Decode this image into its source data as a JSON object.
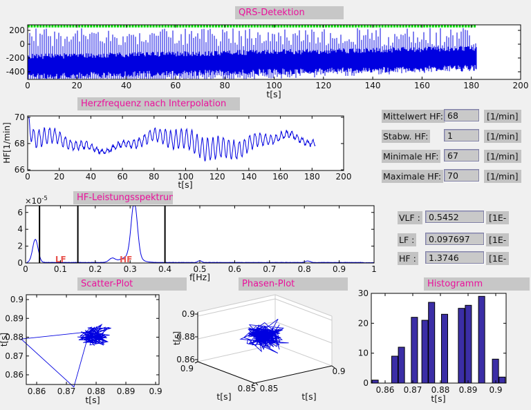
{
  "colors": {
    "page_bg": "#f0f0f0",
    "title_bg": "#c7c7c7",
    "title_text": "#ea119b",
    "label_bg": "#c3c3c3",
    "field_bg": "#c9c9c9",
    "line_blue": "#0000e0",
    "marker_green": "#00dd00",
    "hist_fill": "#3b2ea6",
    "band_label_red": "#e8534e",
    "axis_black": "#000000",
    "grid_gray": "#cccccc"
  },
  "stats_fields": {
    "rows": [
      {
        "label": "Mittelwert HF:",
        "value": "68",
        "unit": "[1/min]"
      },
      {
        "label": "Stabw. HF:",
        "value": "1",
        "unit": "[1/min]"
      },
      {
        "label": "Minimale HF:",
        "value": "67",
        "unit": "[1/min]"
      },
      {
        "label": "Maximale HF:",
        "value": "70",
        "unit": "[1/min]"
      }
    ]
  },
  "power_fields": {
    "rows": [
      {
        "label": "VLF :",
        "value": "0.5452",
        "unit": "[1E-"
      },
      {
        "label": "LF :",
        "value": "0.097697",
        "unit": "[1E-"
      },
      {
        "label": "HF :",
        "value": "1.3746",
        "unit": "[1E-"
      }
    ]
  },
  "chart_data": [
    {
      "id": "qrs",
      "type": "line",
      "title": "QRS-Detektion",
      "xlabel": "t[s]",
      "xlim": [
        0,
        200
      ],
      "ylim": [
        -510,
        280
      ],
      "xticks": [
        [
          0,
          "0"
        ],
        [
          20,
          "20"
        ],
        [
          40,
          "40"
        ],
        [
          60,
          "60"
        ],
        [
          80,
          "80"
        ],
        [
          100,
          "100"
        ],
        [
          120,
          "120"
        ],
        [
          140,
          "140"
        ],
        [
          160,
          "160"
        ],
        [
          180,
          "180"
        ],
        [
          200,
          "200"
        ]
      ],
      "yticks": [
        [
          -400,
          "-400"
        ],
        [
          -200,
          "-200"
        ],
        [
          0,
          "0"
        ],
        [
          200,
          "200"
        ]
      ],
      "signal": {
        "kind": "ecg-with-noise",
        "t_end": 182,
        "band_center_start": -310,
        "band_center_end": -190,
        "band_halfwidth": 150,
        "spike_top_max": 235,
        "spike_bottom_min": -502,
        "qrs_marker_level": 260
      }
    },
    {
      "id": "hf",
      "type": "line",
      "title": "Herzfrequenz nach Interpolation",
      "xlabel": "t[s]",
      "ylabel": "HF[1/min]",
      "xlim": [
        0,
        200
      ],
      "ylim": [
        66,
        70
      ],
      "xticks": [
        [
          0,
          "0"
        ],
        [
          20,
          "20"
        ],
        [
          40,
          "40"
        ],
        [
          60,
          "60"
        ],
        [
          80,
          "80"
        ],
        [
          100,
          "100"
        ],
        [
          120,
          "120"
        ],
        [
          140,
          "140"
        ],
        [
          160,
          "160"
        ],
        [
          180,
          "180"
        ],
        [
          200,
          "200"
        ]
      ],
      "yticks": [
        [
          66,
          "66"
        ],
        [
          68,
          "68"
        ],
        [
          70,
          "70"
        ]
      ],
      "signal": {
        "mean": 68.05,
        "resp_freq_hz": 0.3,
        "resp_amp": 0.9,
        "slow_amp": 0.5,
        "start_peak": 70,
        "min": 66.5,
        "max": 70,
        "t_end": 182
      }
    },
    {
      "id": "spectrum",
      "type": "line",
      "title": "HF-Leistungsspektrum",
      "xlabel": "f[Hz]",
      "exponent_label": {
        "base": "×10",
        "exp": "-5"
      },
      "xlim": [
        0,
        1
      ],
      "ylim": [
        0,
        6.8
      ],
      "xticks": [
        [
          0,
          "0"
        ],
        [
          0.1,
          "0.1"
        ],
        [
          0.2,
          "0.2"
        ],
        [
          0.3,
          "0.3"
        ],
        [
          0.4,
          "0.4"
        ],
        [
          0.5,
          "0.5"
        ],
        [
          0.6,
          "0.6"
        ],
        [
          0.7,
          "0.7"
        ],
        [
          0.8,
          "0.8"
        ],
        [
          0.9,
          "0.9"
        ],
        [
          1,
          "1"
        ]
      ],
      "yticks": [
        [
          0,
          "0"
        ],
        [
          2,
          "2"
        ],
        [
          4,
          "4"
        ],
        [
          6,
          "6"
        ]
      ],
      "vlines": [
        0.04,
        0.15,
        0.4
      ],
      "band_labels": [
        {
          "text": "LF",
          "f": 0.085
        },
        {
          "text": "HF",
          "f": 0.27
        }
      ],
      "peaks": [
        {
          "f": 0.028,
          "h": 2.75,
          "w": 0.011
        },
        {
          "f": 0.248,
          "h": 0.45,
          "w": 0.012
        },
        {
          "f": 0.312,
          "h": 6.55,
          "w": 0.0125
        },
        {
          "f": 0.3,
          "h": 0.7,
          "w": 0.035
        },
        {
          "f": 0.5,
          "h": 0.22,
          "w": 0.007
        },
        {
          "f": 0.81,
          "h": 0.18,
          "w": 0.009
        }
      ],
      "baseline": 0.05
    },
    {
      "id": "scatter",
      "type": "scatter-line",
      "title": "Scatter-Plot",
      "xlabel": "t[s]",
      "ylabel": "t[s]",
      "xticks": [
        [
          0.86,
          "0.86"
        ],
        [
          0.87,
          "0.87"
        ],
        [
          0.88,
          "0.88"
        ],
        [
          0.89,
          "0.89"
        ],
        [
          0.9,
          "0.9"
        ]
      ],
      "yticks": [
        [
          0.86,
          "0.86"
        ],
        [
          0.87,
          "0.87"
        ],
        [
          0.88,
          "0.88"
        ],
        [
          0.89,
          "0.89"
        ],
        [
          0.9,
          "0.9"
        ]
      ],
      "cluster": {
        "center_x": 0.8795,
        "center_y": 0.8805,
        "spread": 0.0075,
        "n_points": 130
      },
      "outlier_points": [
        [
          0.8548,
          0.879
        ],
        [
          0.8725,
          0.8535
        ]
      ]
    },
    {
      "id": "phase",
      "type": "line3d",
      "title": "Phasen-Plot",
      "xlabel": "t[s]",
      "ylabel": "t[s]",
      "zlabel": "t[s]",
      "xticks": [
        "0.9",
        "0.85"
      ],
      "yticks": [
        "0.85",
        "0.9"
      ],
      "zticks": [
        "0.9",
        "0.88",
        "0.86"
      ],
      "cluster": {
        "n_points": 240,
        "u_spread": 0.28,
        "v_spread": 0.28,
        "w_spread": 0.3
      }
    },
    {
      "id": "hist",
      "type": "bar",
      "title": "Histogramm",
      "xlabel": "t[s]",
      "xticks": [
        [
          0.86,
          "0.86"
        ],
        [
          0.87,
          "0.87"
        ],
        [
          0.88,
          "0.88"
        ],
        [
          0.89,
          "0.89"
        ],
        [
          0.9,
          "0.9"
        ]
      ],
      "yticks": [
        [
          0,
          "0"
        ],
        [
          10,
          "10"
        ],
        [
          20,
          "20"
        ],
        [
          30,
          "30"
        ]
      ],
      "ylim": [
        0,
        30
      ],
      "bar_width": 0.00225,
      "centers": [
        0.8564,
        0.8635,
        0.8659,
        0.8706,
        0.8744,
        0.8768,
        0.8815,
        0.8876,
        0.8901,
        0.8949,
        0.8999,
        0.9023
      ],
      "values": [
        1,
        9,
        12,
        22,
        21,
        27,
        23,
        25,
        26,
        29,
        8,
        2
      ]
    }
  ]
}
